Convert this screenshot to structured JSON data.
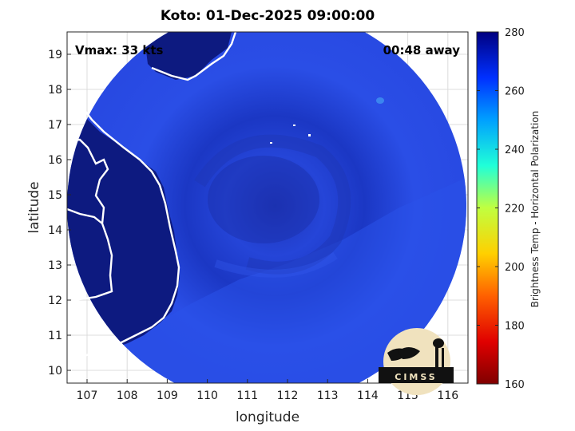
{
  "title": "Koto: 01-Dec-2025 09:00:00",
  "vmax_label": "Vmax: 33 kts",
  "time_away": "00:48 away",
  "axes": {
    "xlabel": "longitude",
    "ylabel": "latitude",
    "xticks": [
      "107",
      "108",
      "109",
      "110",
      "111",
      "112",
      "113",
      "114",
      "115",
      "116"
    ],
    "yticks": [
      "19",
      "18",
      "17",
      "16",
      "15",
      "14",
      "13",
      "12",
      "11",
      "10"
    ]
  },
  "colorbar": {
    "label": "Brightness Temp - Horizontal Polarization",
    "ticks": [
      "280",
      "260",
      "240",
      "220",
      "200",
      "180",
      "160"
    ]
  },
  "logo": {
    "text": "CIMSS"
  },
  "colors": {
    "swath": "#1a3fd8",
    "land": "#0e1a7a",
    "coast": "#ffffff"
  }
}
